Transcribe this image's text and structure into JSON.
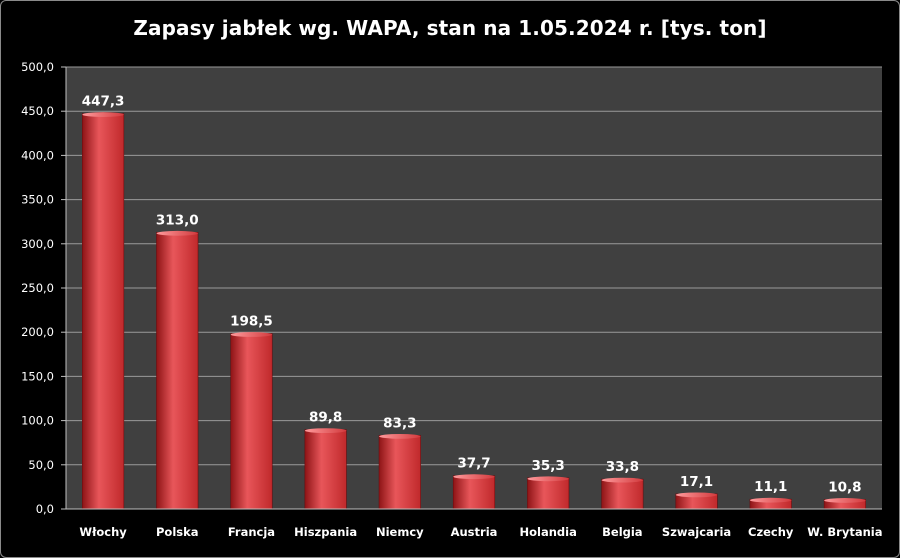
{
  "chart_data": {
    "type": "bar",
    "title": "Zapasy jabłek wg. WAPA, stan na 1.05.2024 r. [tys. ton]",
    "categories": [
      "Włochy",
      "Polska",
      "Francja",
      "Hiszpania",
      "Niemcy",
      "Austria",
      "Holandia",
      "Belgia",
      "Szwajcaria",
      "Czechy",
      "W. Brytania"
    ],
    "values": [
      447.3,
      313.0,
      198.5,
      89.8,
      83.3,
      37.7,
      35.3,
      33.8,
      17.1,
      11.1,
      10.8
    ],
    "data_labels": [
      "447,3",
      "313,0",
      "198,5",
      "89,8",
      "83,3",
      "37,7",
      "35,3",
      "33,8",
      "17,1",
      "11,1",
      "10,8"
    ],
    "y_ticks": [
      0,
      50,
      100,
      150,
      200,
      250,
      300,
      350,
      400,
      450,
      500
    ],
    "y_tick_labels": [
      "0,0",
      "50,0",
      "100,0",
      "150,0",
      "200,0",
      "250,0",
      "300,0",
      "350,0",
      "400,0",
      "450,0",
      "500,0"
    ],
    "ylim": [
      0,
      500
    ],
    "grid": true,
    "xlabel": "",
    "ylabel": "",
    "colors": {
      "bar": "#c0292b",
      "bar_light": "#e8565a",
      "bar_dark": "#8e1416",
      "plot_bg": "#404040",
      "grid": "#9a9a9a",
      "page_bg": "#000000",
      "text": "#ffffff"
    }
  }
}
